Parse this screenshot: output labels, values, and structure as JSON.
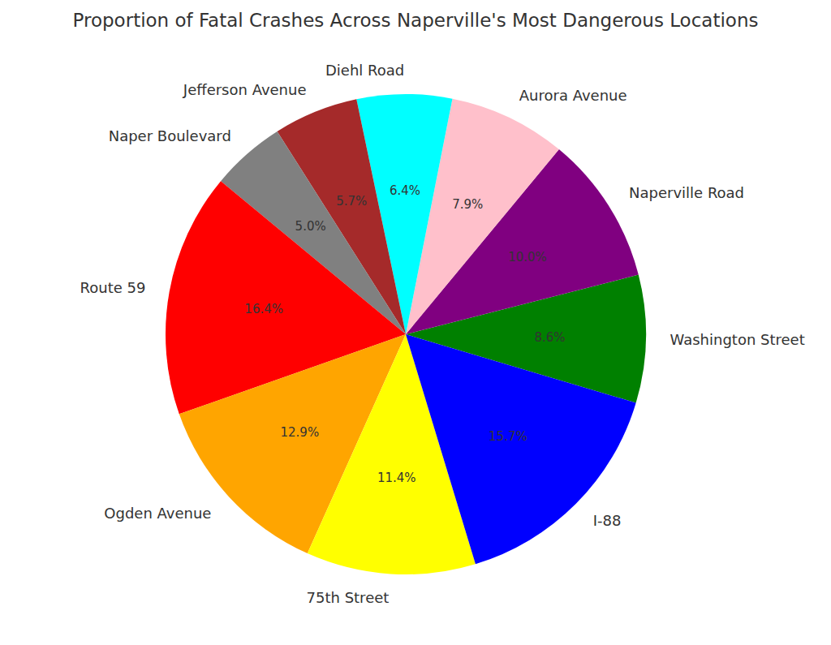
{
  "chart_data": {
    "type": "pie",
    "title": "Proportion of Fatal Crashes Across Naperville's Most Dangerous Locations",
    "categories": [
      "Washington Street",
      "Naperville Road",
      "Aurora Avenue",
      "Diehl Road",
      "Jefferson Avenue",
      "Naper Boulevard",
      "Route 59",
      "Ogden Avenue",
      "75th Street",
      "I-88"
    ],
    "values": [
      8.6,
      10.0,
      7.9,
      6.4,
      5.7,
      5.0,
      16.4,
      12.9,
      11.4,
      15.7
    ],
    "value_labels": [
      "8.6%",
      "10.0%",
      "7.9%",
      "6.4%",
      "5.7%",
      "5.0%",
      "16.4%",
      "12.9%",
      "11.4%",
      "15.7%"
    ],
    "colors": [
      "#008000",
      "#800080",
      "#ffc0cb",
      "#00ffff",
      "#a52a2a",
      "#808080",
      "#ff0000",
      "#ffa500",
      "#ffff00",
      "#0000ff"
    ],
    "data_labels": true
  }
}
